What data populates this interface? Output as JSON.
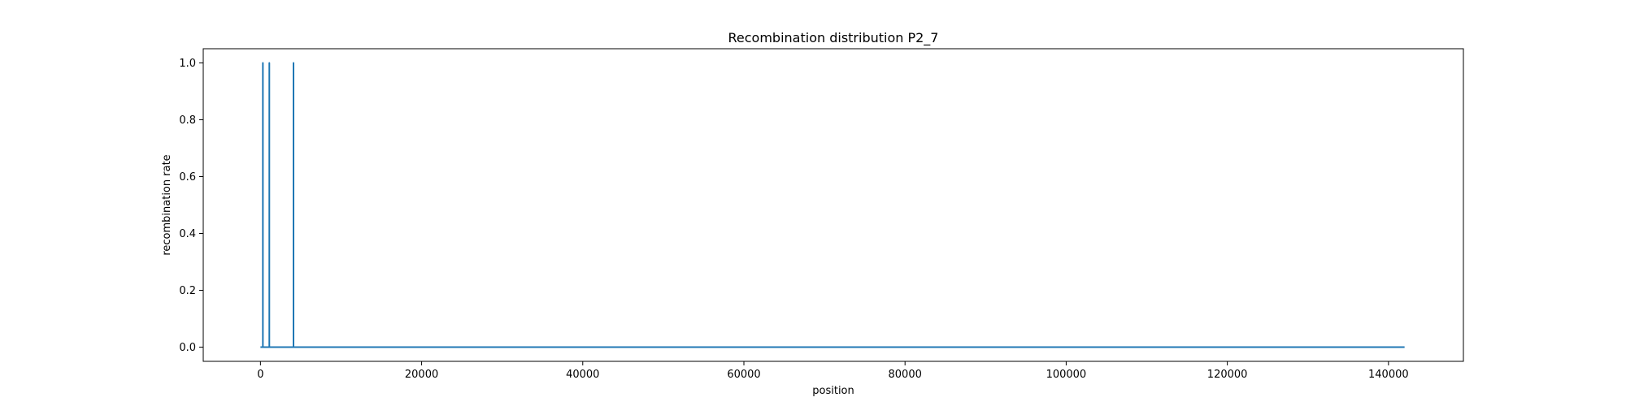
{
  "chart_data": {
    "type": "line",
    "title": "Recombination distribution P2_7",
    "xlabel": "position",
    "ylabel": "recombination rate",
    "xlim": [
      -7100,
      149300
    ],
    "ylim": [
      -0.05,
      1.05
    ],
    "xticks": [
      0,
      20000,
      40000,
      60000,
      80000,
      100000,
      120000,
      140000
    ],
    "yticks": [
      0.0,
      0.2,
      0.4,
      0.6,
      0.8,
      1.0
    ],
    "xtick_labels": [
      "0",
      "20000",
      "40000",
      "60000",
      "80000",
      "100000",
      "120000",
      "140000"
    ],
    "ytick_labels": [
      "0.0",
      "0.2",
      "0.4",
      "0.6",
      "0.8",
      "1.0"
    ],
    "grid": false,
    "line_color": "#1f77b4",
    "series": [
      {
        "x": [
          0,
          300,
          300,
          300,
          1100,
          1100,
          1100,
          4100,
          4100,
          4100,
          142000
        ],
        "y": [
          0,
          0,
          1,
          0,
          0,
          1,
          0,
          0,
          1,
          0,
          0
        ]
      }
    ]
  }
}
